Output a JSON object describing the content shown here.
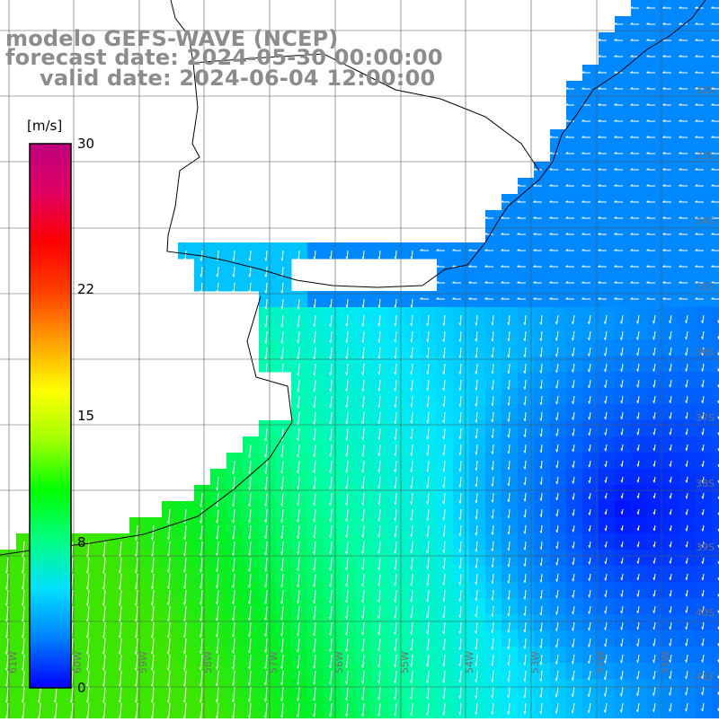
{
  "title": {
    "line1": "modelo GEFS-WAVE (NCEP)",
    "line2": "forecast date: 2024-05-30 00:00:00",
    "line3": "valid date: 2024-06-04 12:00:00"
  },
  "colorbar": {
    "unit": "[m/s]",
    "min": 0,
    "max": 30,
    "ticks": [
      {
        "value": 30,
        "label": "30"
      },
      {
        "value": 22,
        "label": "22"
      },
      {
        "value": 15,
        "label": "15"
      },
      {
        "value": 8,
        "label": "8"
      },
      {
        "value": 0,
        "label": "0"
      }
    ],
    "colors": [
      "#0000ff",
      "#0080ff",
      "#00e0ff",
      "#00ff80",
      "#00ff00",
      "#a0ff00",
      "#ffff00",
      "#ffa000",
      "#ff4000",
      "#ff0000",
      "#e00060",
      "#c00080"
    ]
  },
  "map": {
    "lon_labels": [
      "61W",
      "60W",
      "59W",
      "58W",
      "57W",
      "56W",
      "55W",
      "54W",
      "53W",
      "52W",
      "51W"
    ],
    "lat_labels": [
      "32S",
      "33S",
      "34S",
      "35S",
      "36S",
      "37S",
      "38S",
      "39S",
      "40S",
      "41S"
    ],
    "land_color": "#ffffff",
    "grid_color": "#555555",
    "arrow_color": "#ffffff"
  }
}
